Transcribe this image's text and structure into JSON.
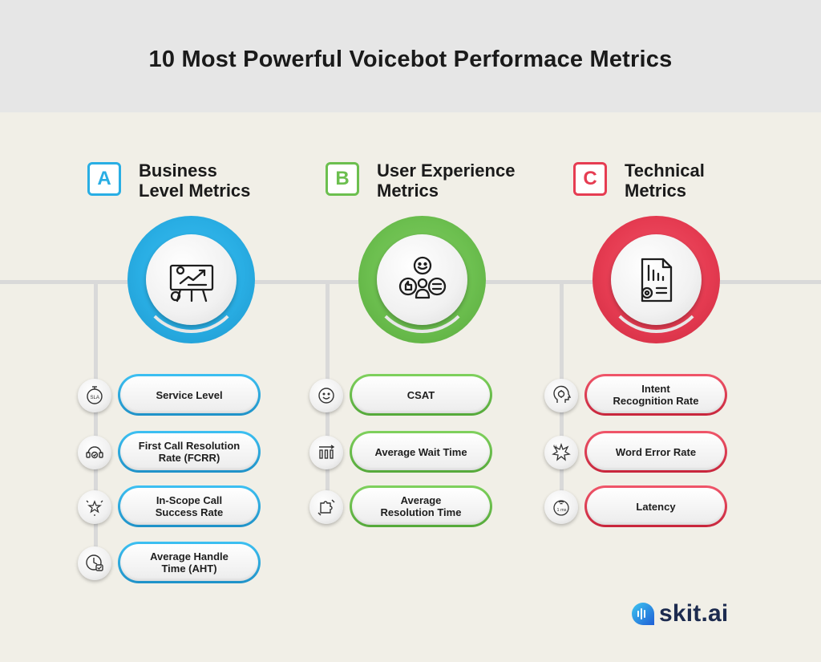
{
  "title": "10 Most Powerful Voicebot Performace Metrics",
  "colors": {
    "a": "#29aee4",
    "b": "#6cbf4f",
    "c": "#e63c52",
    "line": "#d9d9d9",
    "header_bg": "#e6e6e6",
    "page_bg": "#f1efe7"
  },
  "columns": [
    {
      "badge": "A",
      "heading_line1": "Business",
      "heading_line2": "Level Metrics",
      "main_icon": "presentation-chart-icon",
      "metrics": [
        {
          "icon": "sla-stopwatch-icon",
          "line1": "Service Level",
          "line2": ""
        },
        {
          "icon": "headset-check-icon",
          "line1": "First Call Resolution",
          "line2": "Rate (FCRR)"
        },
        {
          "icon": "star-sparkle-icon",
          "line1": "In-Scope Call",
          "line2": "Success Rate"
        },
        {
          "icon": "clock-check-icon",
          "line1": "Average Handle",
          "line2": "Time (AHT)"
        }
      ]
    },
    {
      "badge": "B",
      "heading_line1": "User Experience",
      "heading_line2": "Metrics",
      "main_icon": "user-feedback-icon",
      "metrics": [
        {
          "icon": "smiley-icon",
          "line1": "CSAT",
          "line2": ""
        },
        {
          "icon": "bars-icon",
          "line1": "Average Wait Time",
          "line2": ""
        },
        {
          "icon": "puzzle-icon",
          "line1": "Average",
          "line2": "Resolution Time"
        }
      ]
    },
    {
      "badge": "C",
      "heading_line1": "Technical",
      "heading_line2": "Metrics",
      "main_icon": "report-gear-icon",
      "metrics": [
        {
          "icon": "head-target-icon",
          "line1": "Intent",
          "line2": "Recognition Rate"
        },
        {
          "icon": "percent-burst-icon",
          "line1": "Word Error Rate",
          "line2": ""
        },
        {
          "icon": "latency-signal-icon",
          "line1": "Latency",
          "line2": ""
        }
      ]
    }
  ],
  "logo": {
    "text": "skit.ai",
    "icon": "skit-logo-icon"
  }
}
